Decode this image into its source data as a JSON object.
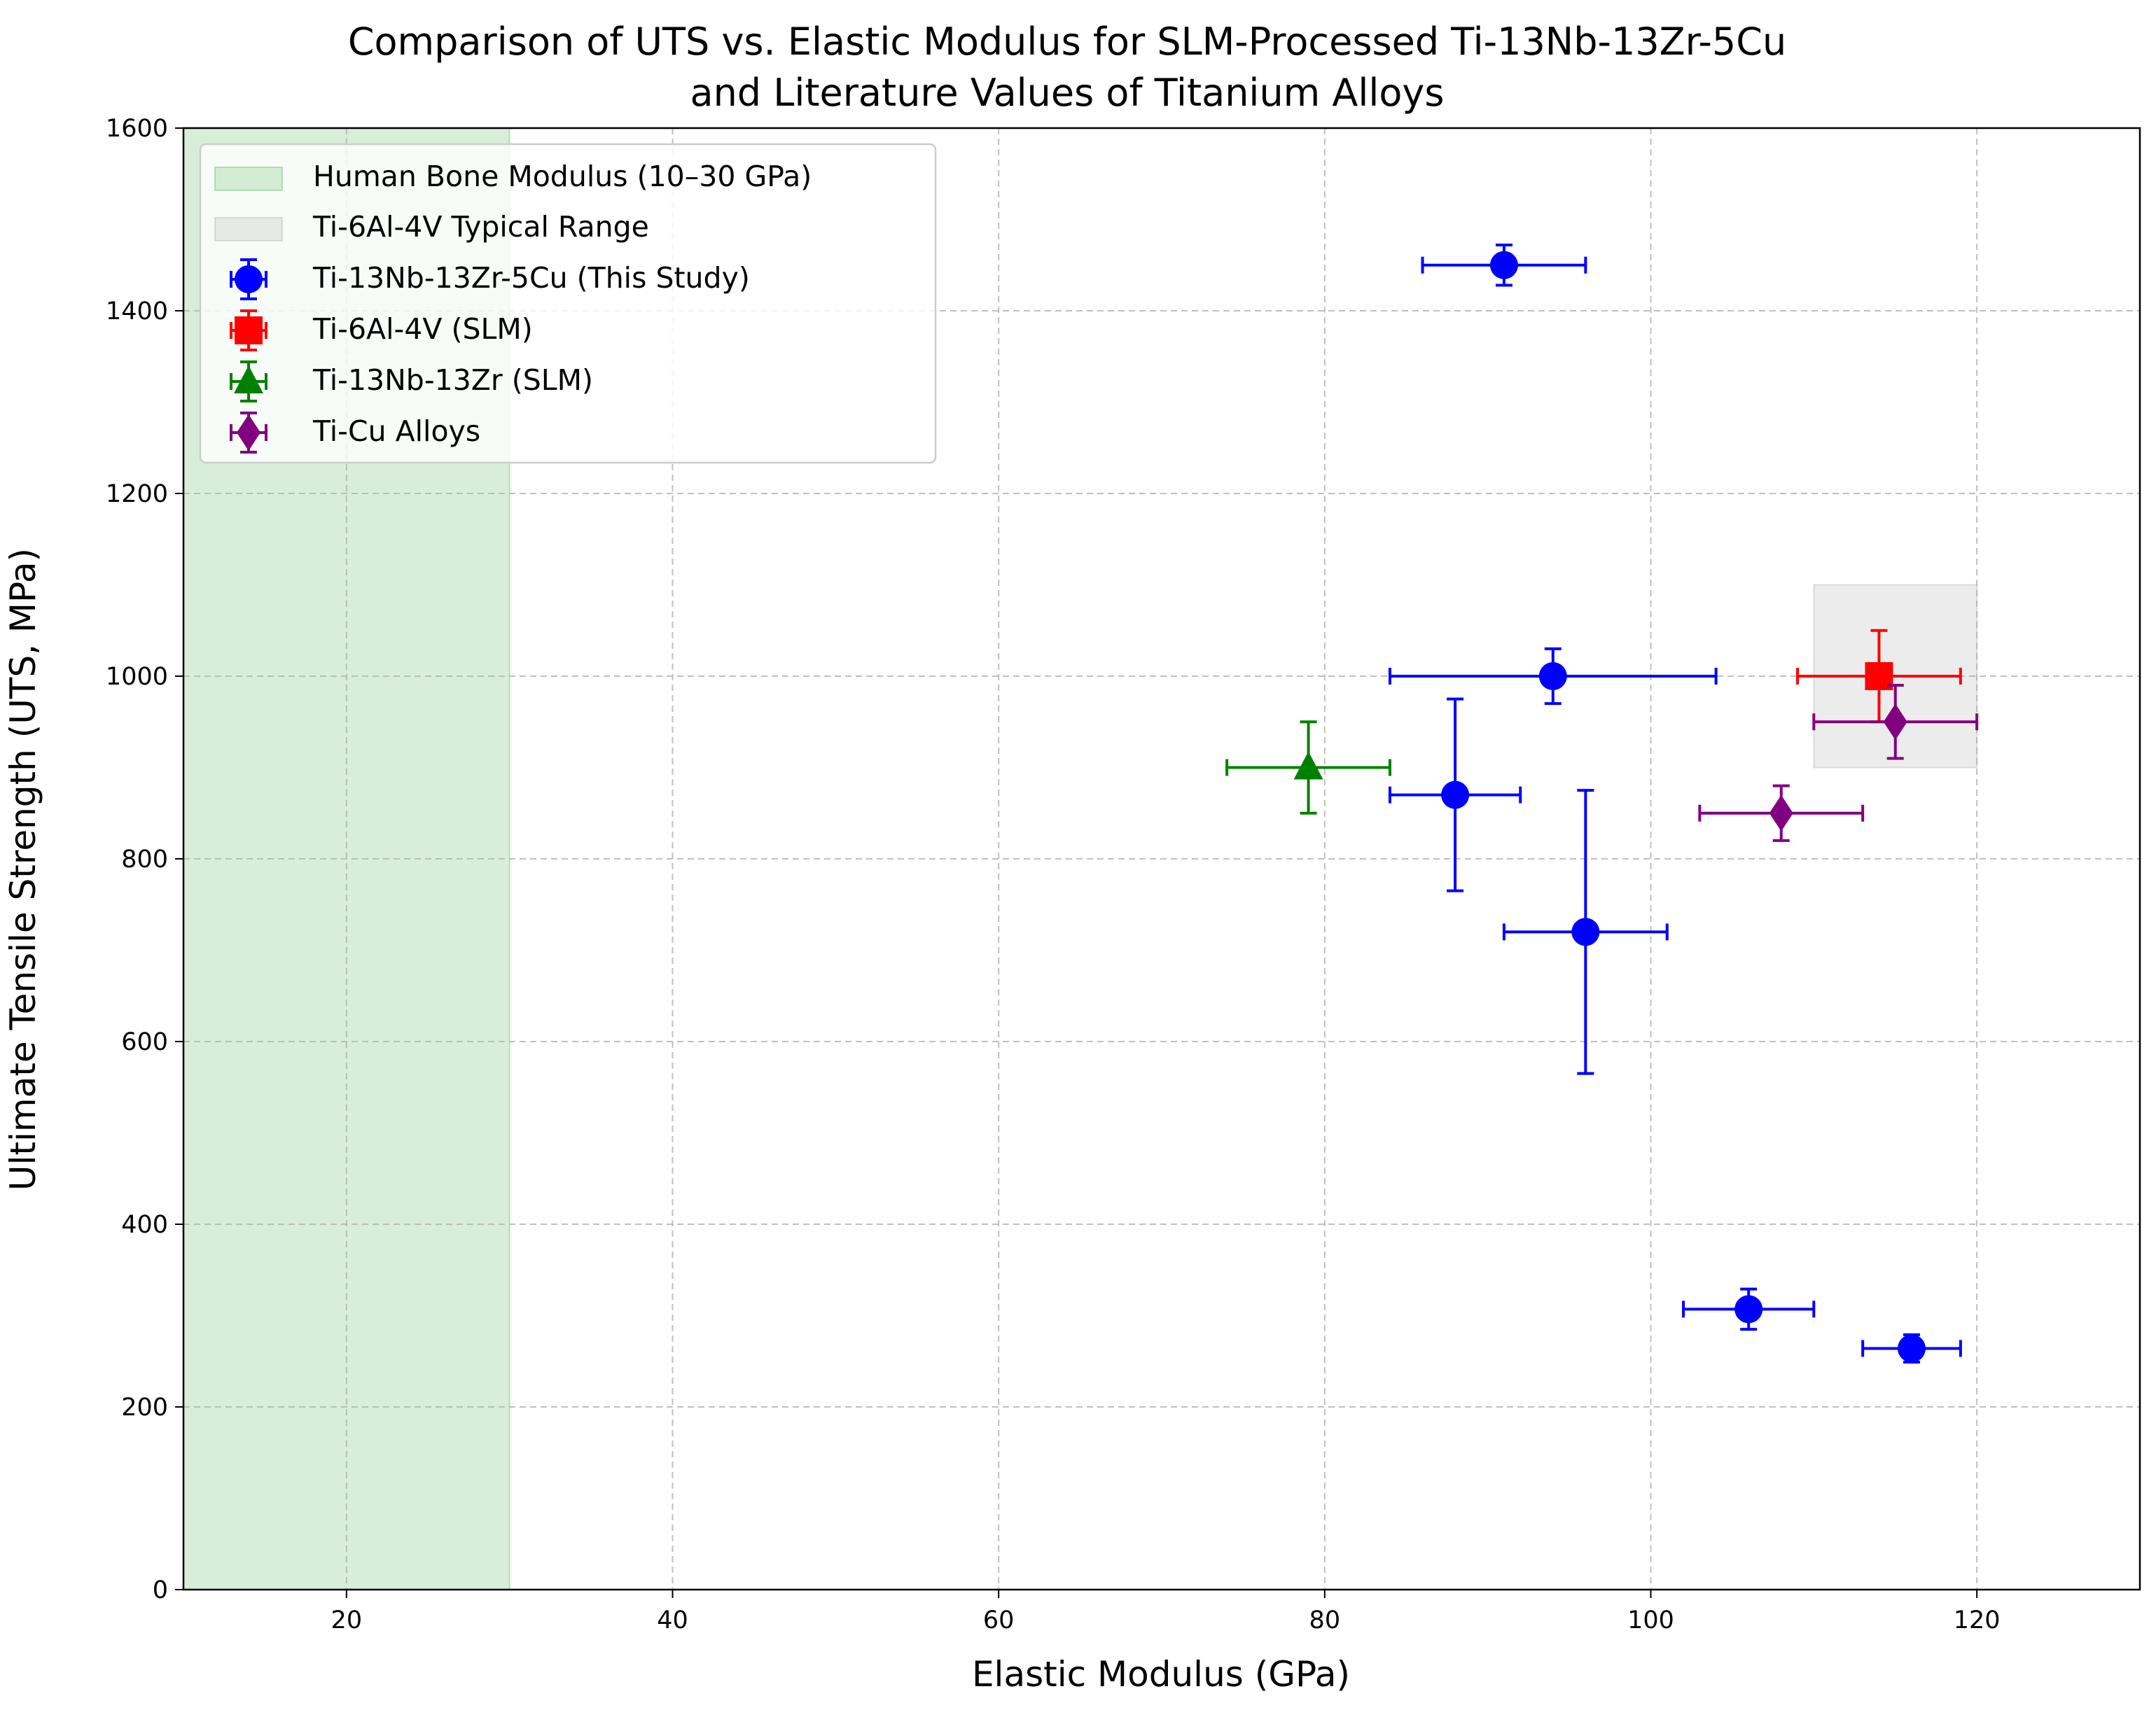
{
  "chart_data": {
    "type": "scatter",
    "title_lines": [
      "Comparison of UTS vs. Elastic Modulus for SLM-Processed Ti-13Nb-13Zr-5Cu",
      "and Literature Values of Titanium Alloys"
    ],
    "xlabel": "Elastic Modulus (GPa)",
    "ylabel": "Ultimate Tensile Strength (UTS, MPa)",
    "xlim": [
      10,
      130
    ],
    "ylim": [
      0,
      1600
    ],
    "xticks": [
      20,
      40,
      60,
      80,
      100,
      120
    ],
    "yticks": [
      0,
      200,
      400,
      600,
      800,
      1000,
      1200,
      1400,
      1600
    ],
    "grid": true,
    "legend_position": "upper-left",
    "shaded_regions": [
      {
        "name": "Human Bone Modulus (10–30 GPa)",
        "x": [
          10,
          30
        ],
        "y": [
          0,
          1600
        ],
        "color": "#2ca02c",
        "opacity": 0.18
      },
      {
        "name": "Ti-6Al-4V Typical Range",
        "x": [
          110,
          120
        ],
        "y": [
          900,
          1100
        ],
        "color": "#a0a0a0",
        "opacity": 0.2
      }
    ],
    "series": [
      {
        "name": "Ti-13Nb-13Zr-5Cu (This Study)",
        "color": "#0000ff",
        "marker": "circle",
        "points": [
          {
            "x": 91,
            "y": 1450,
            "xerr": 5,
            "yerr": 22
          },
          {
            "x": 94,
            "y": 1000,
            "xerr": 10,
            "yerr": 30
          },
          {
            "x": 88,
            "y": 870,
            "xerr": 4,
            "yerr": 105
          },
          {
            "x": 96,
            "y": 720,
            "xerr": 5,
            "yerr": 155
          },
          {
            "x": 106,
            "y": 307,
            "xerr": 4,
            "yerr": 22
          },
          {
            "x": 116,
            "y": 264,
            "xerr": 3,
            "yerr": 15
          }
        ]
      },
      {
        "name": "Ti-6Al-4V (SLM)",
        "color": "#ff0000",
        "marker": "square",
        "points": [
          {
            "x": 114,
            "y": 1000,
            "xerr": 5,
            "yerr": 50
          }
        ]
      },
      {
        "name": "Ti-13Nb-13Zr (SLM)",
        "color": "#008000",
        "marker": "triangle",
        "points": [
          {
            "x": 79,
            "y": 900,
            "xerr": 5,
            "yerr": 50
          }
        ]
      },
      {
        "name": "Ti-Cu Alloys",
        "color": "#800080",
        "marker": "diamond",
        "points": [
          {
            "x": 108,
            "y": 850,
            "xerr": 5,
            "yerr": 30
          },
          {
            "x": 115,
            "y": 950,
            "xerr": 5,
            "yerr": 40
          }
        ]
      }
    ]
  }
}
